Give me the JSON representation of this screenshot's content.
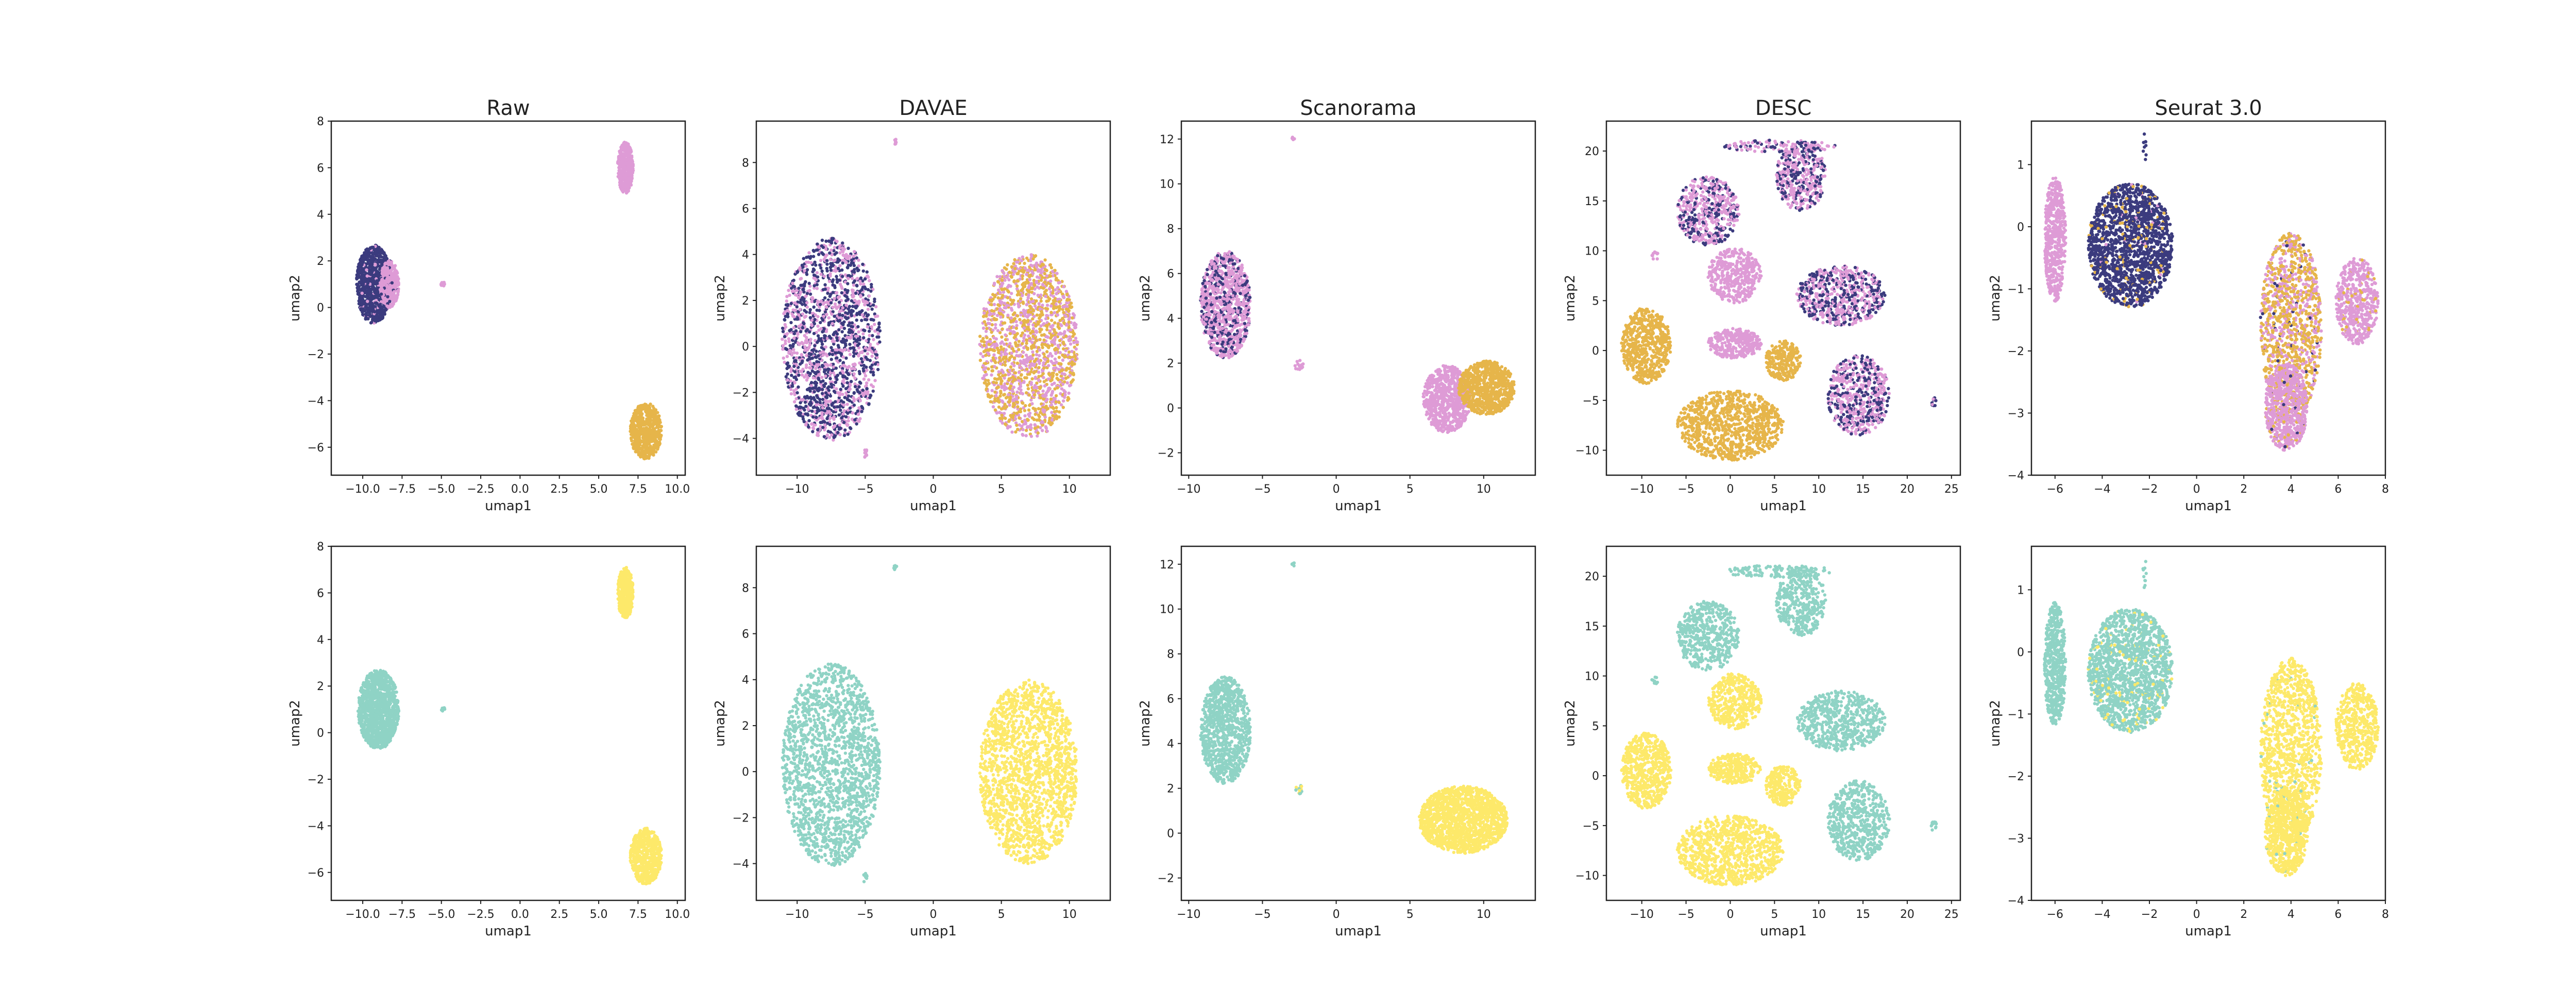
{
  "colors": {
    "batch_dark": "#3b3b7e",
    "batch_pink": "#de9bd6",
    "batch_gold": "#e6b54a",
    "type_teal": "#8fd3c5",
    "type_yellow": "#fde96a"
  },
  "chart_data": [
    {
      "type": "scatter",
      "title": "Raw",
      "row": 0,
      "coloring": "batch",
      "xlabel": "umap1",
      "ylabel": "umap2",
      "xlim": [
        -12,
        10.5
      ],
      "ylim": [
        -7.2,
        8
      ],
      "xticks": [
        -10.0,
        -7.5,
        -5.0,
        -2.5,
        0.0,
        2.5,
        5.0,
        7.5,
        10.0
      ],
      "xtick_labels": [
        "−10.0",
        "−7.5",
        "−5.0",
        "−2.5",
        "0.0",
        "2.5",
        "5.0",
        "7.5",
        "10.0"
      ],
      "yticks": [
        -6,
        -4,
        -2,
        0,
        2,
        4,
        6,
        8
      ],
      "clusters": [
        {
          "cx": -9.3,
          "cy": 1.0,
          "rx": 1.1,
          "ry": 1.7,
          "n": 900,
          "mix": [
            0.92,
            0.08,
            0
          ]
        },
        {
          "cx": -8.3,
          "cy": 1.0,
          "rx": 0.6,
          "ry": 1.0,
          "n": 380,
          "mix": [
            0.05,
            0.95,
            0
          ]
        },
        {
          "cx": 6.7,
          "cy": 6.0,
          "rx": 0.5,
          "ry": 1.1,
          "n": 380,
          "mix": [
            0,
            1,
            0
          ]
        },
        {
          "cx": 8.0,
          "cy": -5.3,
          "rx": 1.0,
          "ry": 1.2,
          "n": 600,
          "mix": [
            0,
            0,
            1
          ]
        },
        {
          "cx": -4.9,
          "cy": 1.0,
          "rx": 0.12,
          "ry": 0.1,
          "n": 12,
          "mix": [
            0,
            1,
            0
          ]
        }
      ]
    },
    {
      "type": "scatter",
      "title": "DAVAE",
      "row": 0,
      "coloring": "batch",
      "xlabel": "umap1",
      "ylabel": "umap2",
      "xlim": [
        -13,
        13
      ],
      "ylim": [
        -5.6,
        9.8
      ],
      "xticks": [
        -10,
        -5,
        0,
        5,
        10
      ],
      "xtick_labels": [
        "−10",
        "−5",
        "0",
        "5",
        "10"
      ],
      "yticks": [
        -4,
        -2,
        0,
        2,
        4,
        6,
        8
      ],
      "clusters": [
        {
          "cx": -7.5,
          "cy": 0.3,
          "rx": 3.6,
          "ry": 4.4,
          "n": 1700,
          "mix": [
            0.55,
            0.45,
            0
          ]
        },
        {
          "cx": 7.0,
          "cy": 0.0,
          "rx": 3.6,
          "ry": 4.0,
          "n": 1700,
          "mix": [
            0,
            0.45,
            0.55
          ]
        },
        {
          "cx": -2.8,
          "cy": 8.9,
          "rx": 0.12,
          "ry": 0.12,
          "n": 8,
          "mix": [
            0,
            1,
            0
          ]
        },
        {
          "cx": -5.0,
          "cy": -4.6,
          "rx": 0.15,
          "ry": 0.25,
          "n": 10,
          "mix": [
            0,
            1,
            0
          ]
        }
      ]
    },
    {
      "type": "scatter",
      "title": "Scanorama",
      "row": 0,
      "coloring": "batch",
      "xlabel": "umap1",
      "ylabel": "umap2",
      "xlim": [
        -10.5,
        13.5
      ],
      "ylim": [
        -3,
        12.8
      ],
      "xticks": [
        -10,
        -5,
        0,
        5,
        10
      ],
      "xtick_labels": [
        "−10",
        "−5",
        "0",
        "5",
        "10"
      ],
      "yticks": [
        -2,
        0,
        2,
        4,
        6,
        8,
        10,
        12
      ],
      "clusters": [
        {
          "cx": -7.5,
          "cy": 4.6,
          "rx": 1.7,
          "ry": 2.4,
          "n": 1000,
          "mix": [
            0.3,
            0.7,
            0
          ]
        },
        {
          "cx": 7.5,
          "cy": 0.4,
          "rx": 1.6,
          "ry": 1.5,
          "n": 700,
          "mix": [
            0,
            1,
            0
          ]
        },
        {
          "cx": 10.2,
          "cy": 0.9,
          "rx": 1.9,
          "ry": 1.2,
          "n": 800,
          "mix": [
            0,
            0,
            1
          ]
        },
        {
          "cx": -2.5,
          "cy": 1.9,
          "rx": 0.3,
          "ry": 0.25,
          "n": 14,
          "mix": [
            0,
            1,
            0
          ]
        },
        {
          "cx": -2.9,
          "cy": 12.0,
          "rx": 0.1,
          "ry": 0.1,
          "n": 5,
          "mix": [
            0,
            1,
            0
          ]
        }
      ]
    },
    {
      "type": "scatter",
      "title": "DESC",
      "row": 0,
      "coloring": "batch",
      "xlabel": "umap1",
      "ylabel": "umap2",
      "xlim": [
        -14,
        26
      ],
      "ylim": [
        -12.5,
        23
      ],
      "xticks": [
        -10,
        -5,
        0,
        5,
        10,
        15,
        20,
        25
      ],
      "xtick_labels": [
        "−10",
        "−5",
        "0",
        "5",
        "10",
        "15",
        "20",
        "25"
      ],
      "yticks": [
        -10,
        -5,
        0,
        5,
        10,
        15,
        20
      ],
      "clusters": [
        {
          "cx": -2.5,
          "cy": 14.0,
          "rx": 3.5,
          "ry": 3.5,
          "n": 500,
          "mix": [
            0.4,
            0.6,
            0
          ]
        },
        {
          "cx": 5.5,
          "cy": 20.5,
          "rx": 6.5,
          "ry": 0.6,
          "n": 120,
          "mix": [
            0.4,
            0.6,
            0
          ]
        },
        {
          "cx": 8.0,
          "cy": 17.5,
          "rx": 2.8,
          "ry": 3.5,
          "n": 400,
          "mix": [
            0.4,
            0.6,
            0
          ]
        },
        {
          "cx": 0.5,
          "cy": 7.5,
          "rx": 3.0,
          "ry": 2.8,
          "n": 400,
          "mix": [
            0,
            1,
            0
          ]
        },
        {
          "cx": 12.5,
          "cy": 5.5,
          "rx": 5.0,
          "ry": 3.0,
          "n": 600,
          "mix": [
            0.45,
            0.55,
            0
          ]
        },
        {
          "cx": -9.5,
          "cy": 0.5,
          "rx": 2.8,
          "ry": 3.8,
          "n": 600,
          "mix": [
            0,
            0,
            1
          ]
        },
        {
          "cx": 0.5,
          "cy": 0.7,
          "rx": 3.0,
          "ry": 1.5,
          "n": 300,
          "mix": [
            0,
            1,
            0
          ]
        },
        {
          "cx": 6.0,
          "cy": -1.0,
          "rx": 2.0,
          "ry": 2.0,
          "n": 250,
          "mix": [
            0,
            0,
            1
          ]
        },
        {
          "cx": 14.5,
          "cy": -4.5,
          "rx": 3.5,
          "ry": 4.0,
          "n": 550,
          "mix": [
            0.4,
            0.6,
            0
          ]
        },
        {
          "cx": 0.0,
          "cy": -7.5,
          "rx": 6.0,
          "ry": 3.5,
          "n": 900,
          "mix": [
            0,
            0,
            1
          ]
        },
        {
          "cx": 23.0,
          "cy": -5.0,
          "rx": 0.3,
          "ry": 0.6,
          "n": 12,
          "mix": [
            0.5,
            0.5,
            0
          ]
        },
        {
          "cx": -8.5,
          "cy": 9.5,
          "rx": 0.4,
          "ry": 0.4,
          "n": 10,
          "mix": [
            0,
            1,
            0
          ]
        }
      ]
    },
    {
      "type": "scatter",
      "title": "Seurat 3.0",
      "row": 0,
      "coloring": "batch",
      "xlabel": "umap1",
      "ylabel": "umap2",
      "xlim": [
        -7,
        8
      ],
      "ylim": [
        -4,
        1.7
      ],
      "xticks": [
        -6,
        -4,
        -2,
        0,
        2,
        4,
        6,
        8
      ],
      "xtick_labels": [
        "−6",
        "−4",
        "−2",
        "0",
        "2",
        "4",
        "6",
        "8"
      ],
      "yticks": [
        -4,
        -3,
        -2,
        -1,
        0,
        1
      ],
      "clusters": [
        {
          "cx": -6.0,
          "cy": -0.2,
          "rx": 0.45,
          "ry": 1.0,
          "n": 550,
          "mix": [
            0,
            1,
            0
          ]
        },
        {
          "cx": -2.8,
          "cy": -0.3,
          "rx": 1.8,
          "ry": 1.0,
          "n": 1600,
          "mix": [
            0.9,
            0.02,
            0.08
          ]
        },
        {
          "cx": 4.0,
          "cy": -1.6,
          "rx": 1.3,
          "ry": 1.5,
          "n": 1200,
          "mix": [
            0.05,
            0.35,
            0.6
          ]
        },
        {
          "cx": 3.8,
          "cy": -2.9,
          "rx": 0.9,
          "ry": 0.7,
          "n": 700,
          "mix": [
            0.02,
            0.9,
            0.08
          ]
        },
        {
          "cx": 6.8,
          "cy": -1.2,
          "rx": 0.9,
          "ry": 0.7,
          "n": 500,
          "mix": [
            0,
            0.9,
            0.1
          ]
        },
        {
          "cx": -2.2,
          "cy": 1.25,
          "rx": 0.08,
          "ry": 0.25,
          "n": 10,
          "mix": [
            1,
            0,
            0
          ]
        }
      ]
    },
    {
      "type": "scatter",
      "title": "",
      "row": 1,
      "coloring": "celltype",
      "xlabel": "umap1",
      "ylabel": "umap2",
      "xlim": [
        -12,
        10.5
      ],
      "ylim": [
        -7.2,
        8
      ],
      "xticks": [
        -10.0,
        -7.5,
        -5.0,
        -2.5,
        0.0,
        2.5,
        5.0,
        7.5,
        10.0
      ],
      "xtick_labels": [
        "−10.0",
        "−7.5",
        "−5.0",
        "−2.5",
        "0.0",
        "2.5",
        "5.0",
        "7.5",
        "10.0"
      ],
      "yticks": [
        -6,
        -4,
        -2,
        0,
        2,
        4,
        6,
        8
      ],
      "clusters": [
        {
          "cx": -9.0,
          "cy": 1.0,
          "rx": 1.3,
          "ry": 1.7,
          "n": 1200,
          "mix": [
            1,
            0
          ]
        },
        {
          "cx": 6.7,
          "cy": 6.0,
          "rx": 0.5,
          "ry": 1.1,
          "n": 380,
          "mix": [
            0,
            1
          ]
        },
        {
          "cx": 8.0,
          "cy": -5.3,
          "rx": 1.0,
          "ry": 1.2,
          "n": 600,
          "mix": [
            0,
            1
          ]
        },
        {
          "cx": -4.9,
          "cy": 1.0,
          "rx": 0.12,
          "ry": 0.1,
          "n": 12,
          "mix": [
            1,
            0
          ]
        }
      ]
    },
    {
      "type": "scatter",
      "title": "",
      "row": 1,
      "coloring": "celltype",
      "xlabel": "umap1",
      "ylabel": "umap2",
      "xlim": [
        -13,
        13
      ],
      "ylim": [
        -5.6,
        9.8
      ],
      "xticks": [
        -10,
        -5,
        0,
        5,
        10
      ],
      "xtick_labels": [
        "−10",
        "−5",
        "0",
        "5",
        "10"
      ],
      "yticks": [
        -4,
        -2,
        0,
        2,
        4,
        6,
        8
      ],
      "clusters": [
        {
          "cx": -7.5,
          "cy": 0.3,
          "rx": 3.6,
          "ry": 4.4,
          "n": 1700,
          "mix": [
            1,
            0
          ]
        },
        {
          "cx": 7.0,
          "cy": 0.0,
          "rx": 3.6,
          "ry": 4.0,
          "n": 1700,
          "mix": [
            0,
            1
          ]
        },
        {
          "cx": -2.8,
          "cy": 8.9,
          "rx": 0.12,
          "ry": 0.12,
          "n": 8,
          "mix": [
            1,
            0
          ]
        },
        {
          "cx": -5.0,
          "cy": -4.6,
          "rx": 0.15,
          "ry": 0.25,
          "n": 10,
          "mix": [
            1,
            0
          ]
        }
      ]
    },
    {
      "type": "scatter",
      "title": "",
      "row": 1,
      "coloring": "celltype",
      "xlabel": "umap1",
      "ylabel": "umap2",
      "xlim": [
        -10.5,
        13.5
      ],
      "ylim": [
        -3,
        12.8
      ],
      "xticks": [
        -10,
        -5,
        0,
        5,
        10
      ],
      "xtick_labels": [
        "−10",
        "−5",
        "0",
        "5",
        "10"
      ],
      "yticks": [
        -2,
        0,
        2,
        4,
        6,
        8,
        10,
        12
      ],
      "clusters": [
        {
          "cx": -7.5,
          "cy": 4.6,
          "rx": 1.7,
          "ry": 2.4,
          "n": 1000,
          "mix": [
            1,
            0
          ]
        },
        {
          "cx": 8.6,
          "cy": 0.6,
          "rx": 3.0,
          "ry": 1.5,
          "n": 1500,
          "mix": [
            0,
            1
          ]
        },
        {
          "cx": -2.5,
          "cy": 1.9,
          "rx": 0.3,
          "ry": 0.25,
          "n": 14,
          "mix": [
            0.5,
            0.5
          ]
        },
        {
          "cx": -2.9,
          "cy": 12.0,
          "rx": 0.1,
          "ry": 0.1,
          "n": 5,
          "mix": [
            1,
            0
          ]
        }
      ]
    },
    {
      "type": "scatter",
      "title": "",
      "row": 1,
      "coloring": "celltype",
      "xlabel": "umap1",
      "ylabel": "umap2",
      "xlim": [
        -14,
        26
      ],
      "ylim": [
        -12.5,
        23
      ],
      "xticks": [
        -10,
        -5,
        0,
        5,
        10,
        15,
        20,
        25
      ],
      "xtick_labels": [
        "−10",
        "−5",
        "0",
        "5",
        "10",
        "15",
        "20",
        "25"
      ],
      "yticks": [
        -10,
        -5,
        0,
        5,
        10,
        15,
        20
      ],
      "clusters": [
        {
          "cx": -2.5,
          "cy": 14.0,
          "rx": 3.5,
          "ry": 3.5,
          "n": 500,
          "mix": [
            1,
            0
          ]
        },
        {
          "cx": 5.5,
          "cy": 20.5,
          "rx": 6.5,
          "ry": 0.6,
          "n": 120,
          "mix": [
            1,
            0
          ]
        },
        {
          "cx": 8.0,
          "cy": 17.5,
          "rx": 2.8,
          "ry": 3.5,
          "n": 400,
          "mix": [
            1,
            0
          ]
        },
        {
          "cx": 0.5,
          "cy": 7.5,
          "rx": 3.0,
          "ry": 2.8,
          "n": 400,
          "mix": [
            0,
            1
          ]
        },
        {
          "cx": 12.5,
          "cy": 5.5,
          "rx": 5.0,
          "ry": 3.0,
          "n": 600,
          "mix": [
            1,
            0
          ]
        },
        {
          "cx": -9.5,
          "cy": 0.5,
          "rx": 2.8,
          "ry": 3.8,
          "n": 600,
          "mix": [
            0,
            1
          ]
        },
        {
          "cx": 0.5,
          "cy": 0.7,
          "rx": 3.0,
          "ry": 1.5,
          "n": 300,
          "mix": [
            0,
            1
          ]
        },
        {
          "cx": 6.0,
          "cy": -1.0,
          "rx": 2.0,
          "ry": 2.0,
          "n": 250,
          "mix": [
            0,
            1
          ]
        },
        {
          "cx": 14.5,
          "cy": -4.5,
          "rx": 3.5,
          "ry": 4.0,
          "n": 550,
          "mix": [
            1,
            0
          ]
        },
        {
          "cx": 0.0,
          "cy": -7.5,
          "rx": 6.0,
          "ry": 3.5,
          "n": 900,
          "mix": [
            0,
            1
          ]
        },
        {
          "cx": 23.0,
          "cy": -5.0,
          "rx": 0.3,
          "ry": 0.6,
          "n": 12,
          "mix": [
            1,
            0
          ]
        },
        {
          "cx": -8.5,
          "cy": 9.5,
          "rx": 0.4,
          "ry": 0.4,
          "n": 10,
          "mix": [
            1,
            0
          ]
        }
      ]
    },
    {
      "type": "scatter",
      "title": "",
      "row": 1,
      "coloring": "celltype",
      "xlabel": "umap1",
      "ylabel": "umap2",
      "xlim": [
        -7,
        8
      ],
      "ylim": [
        -4,
        1.7
      ],
      "xticks": [
        -6,
        -4,
        -2,
        0,
        2,
        4,
        6,
        8
      ],
      "xtick_labels": [
        "−6",
        "−4",
        "−2",
        "0",
        "2",
        "4",
        "6",
        "8"
      ],
      "yticks": [
        -4,
        -3,
        -2,
        -1,
        0,
        1
      ],
      "clusters": [
        {
          "cx": -6.0,
          "cy": -0.2,
          "rx": 0.45,
          "ry": 1.0,
          "n": 550,
          "mix": [
            1,
            0
          ]
        },
        {
          "cx": -2.8,
          "cy": -0.3,
          "rx": 1.8,
          "ry": 1.0,
          "n": 1600,
          "mix": [
            0.93,
            0.07
          ]
        },
        {
          "cx": 4.0,
          "cy": -1.6,
          "rx": 1.3,
          "ry": 1.5,
          "n": 1200,
          "mix": [
            0.03,
            0.97
          ]
        },
        {
          "cx": 3.8,
          "cy": -2.9,
          "rx": 0.9,
          "ry": 0.7,
          "n": 700,
          "mix": [
            0.02,
            0.98
          ]
        },
        {
          "cx": 6.8,
          "cy": -1.2,
          "rx": 0.9,
          "ry": 0.7,
          "n": 500,
          "mix": [
            0,
            1
          ]
        },
        {
          "cx": -2.2,
          "cy": 1.25,
          "rx": 0.08,
          "ry": 0.25,
          "n": 10,
          "mix": [
            1,
            0
          ]
        }
      ]
    }
  ]
}
